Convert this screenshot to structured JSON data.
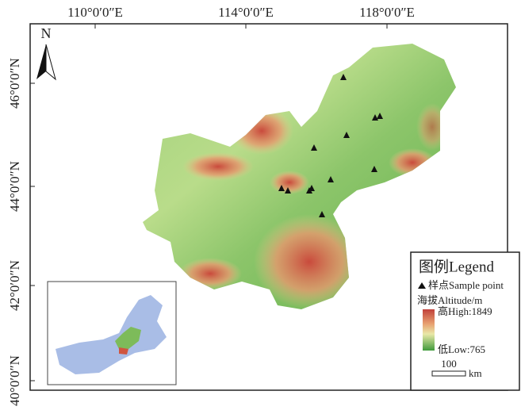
{
  "map": {
    "x_labels": [
      "110°0′0″E",
      "114°0′0″E",
      "118°0′0″E"
    ],
    "y_labels": [
      "46°0′0″N",
      "44°0′0″N",
      "42°0′0″N",
      "40°0′0″N"
    ],
    "north": "N",
    "legend": {
      "title": "图例Legend",
      "sample_point": "样点Sample point",
      "altitude_title": "海拔Altitude/m",
      "high": "高High:1849",
      "low": "低Low:765"
    },
    "scale_bar": {
      "value": "100",
      "unit": "km"
    }
  }
}
